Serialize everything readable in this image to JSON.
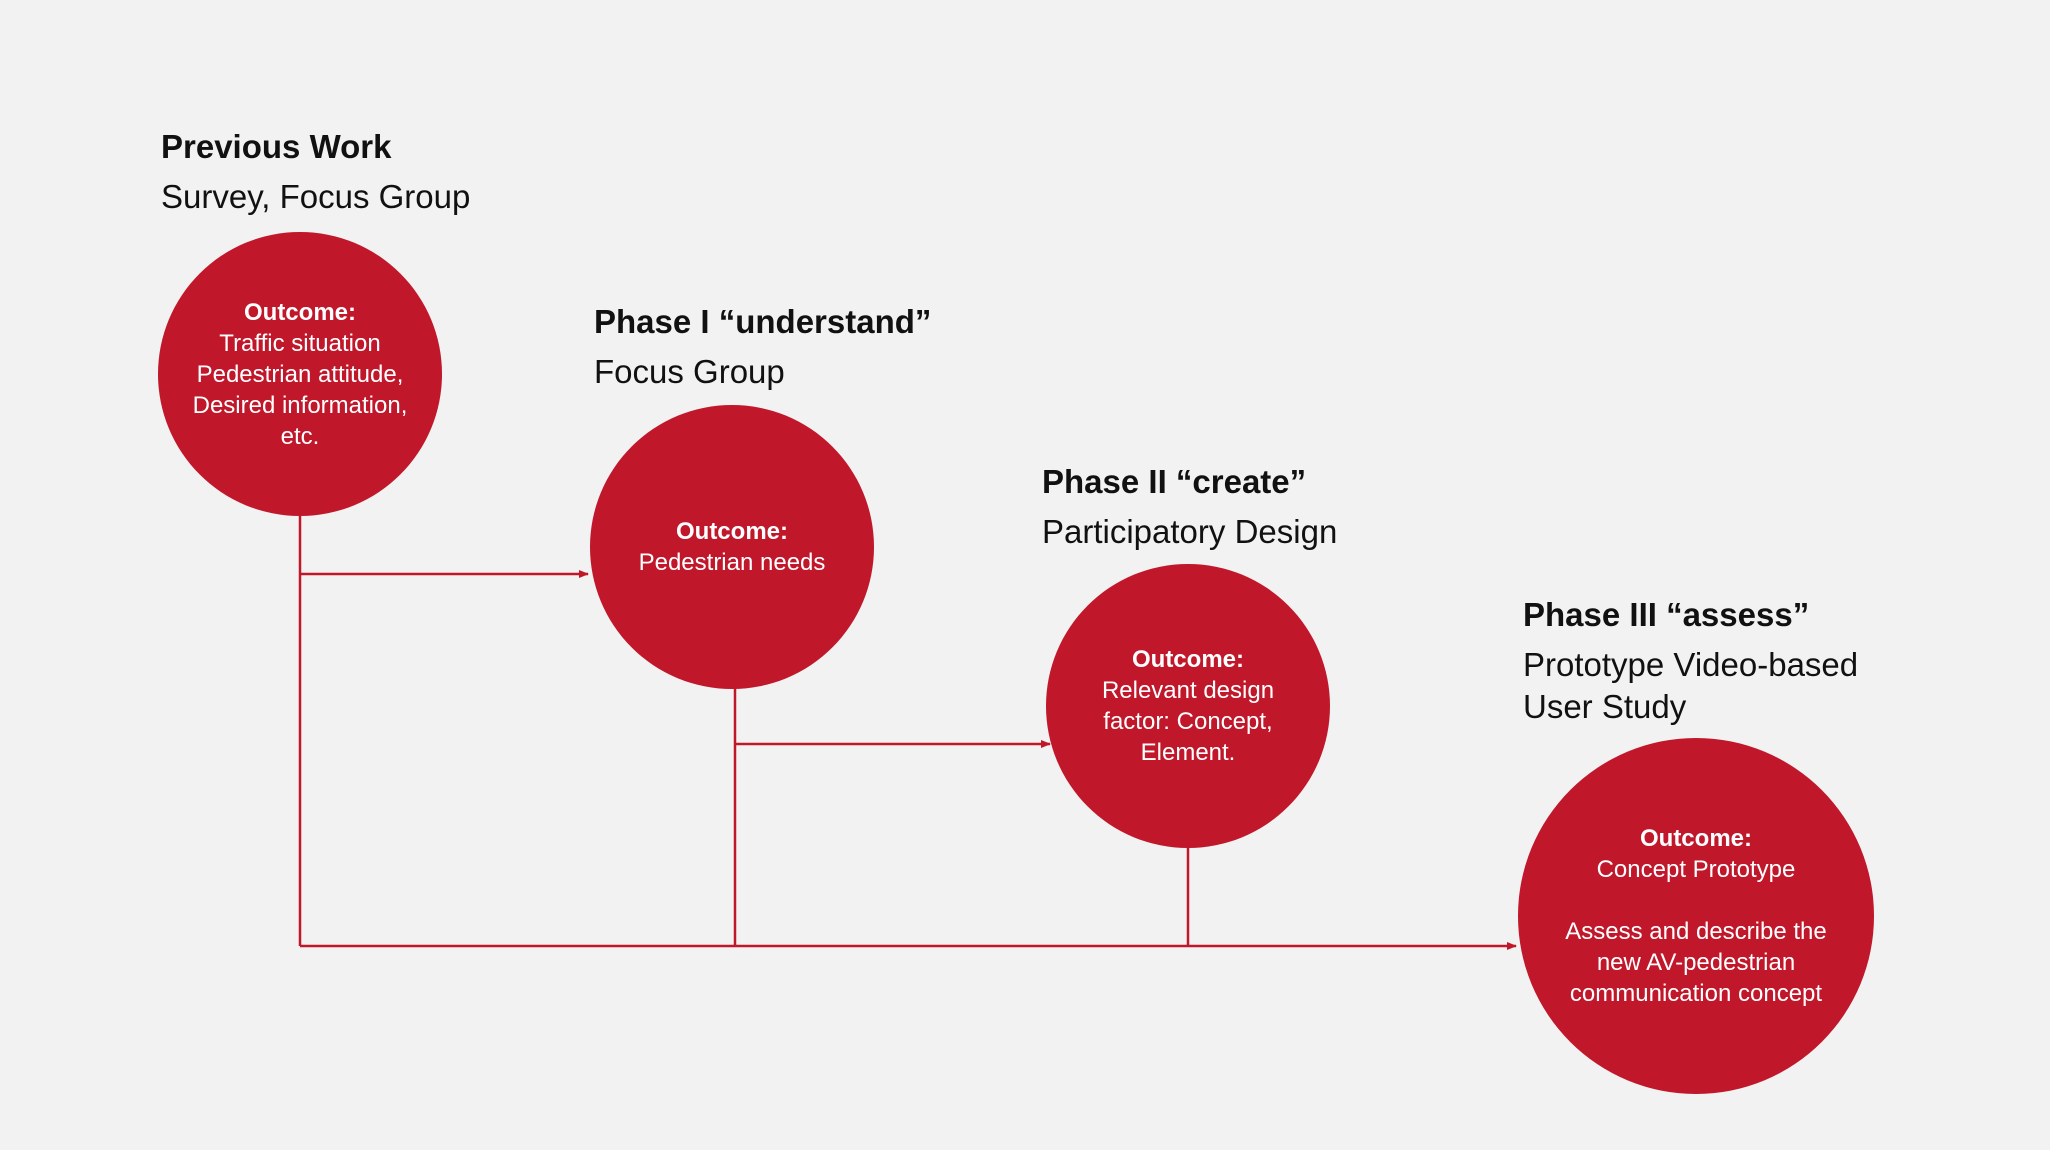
{
  "colors": {
    "background": "#f2f2f2",
    "circle_fill": "#c0172b",
    "circle_text": "#ffffff",
    "connector": "#c0172b",
    "heading_text": "#111111"
  },
  "stages": [
    {
      "title": "Previous Work",
      "method": "Survey, Focus Group",
      "outcome_label": "Outcome:",
      "outcome_lines": [
        "Traffic situation",
        "Pedestrian attitude,",
        "Desired information,",
        "etc."
      ]
    },
    {
      "title": "Phase I “understand”",
      "method": "Focus Group",
      "outcome_label": "Outcome:",
      "outcome_lines": [
        "Pedestrian needs"
      ]
    },
    {
      "title": "Phase II “create”",
      "method": "Participatory Design",
      "outcome_label": "Outcome:",
      "outcome_lines": [
        "Relevant design",
        "factor: Concept,",
        "Element."
      ]
    },
    {
      "title": "Phase III “assess”",
      "method_lines": [
        "Prototype Video-based",
        "User Study"
      ],
      "outcome_label": "Outcome:",
      "outcome_lines": [
        "Concept Prototype"
      ],
      "outcome_extra_lines": [
        "Assess and describe the",
        "new AV-pedestrian",
        "communication concept"
      ]
    }
  ]
}
